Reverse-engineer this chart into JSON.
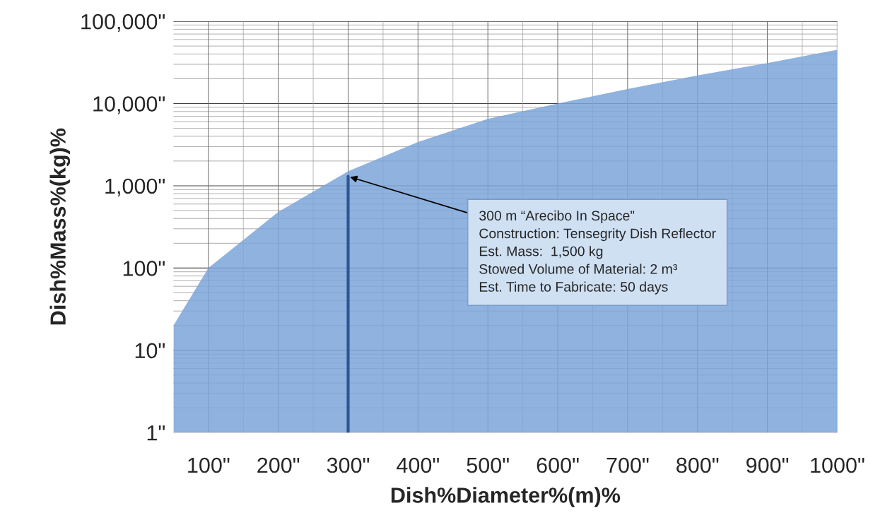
{
  "chart_data": {
    "type": "area",
    "xlabel": "Dish%Diameter%(m)%",
    "ylabel": "Dish%Mass%(kg)%",
    "x": [
      50,
      100,
      200,
      300,
      400,
      500,
      600,
      700,
      800,
      900,
      1000
    ],
    "series": [
      {
        "color": "#7ba5d8",
        "values": [
          20,
          100,
          480,
          1500,
          3400,
          6500,
          10000,
          15000,
          22000,
          31000,
          45000
        ]
      },
      {
        "type": "line",
        "color": "#2b5796",
        "x": [
          300,
          300
        ],
        "values": [
          1,
          1300
        ]
      }
    ],
    "log": "y",
    "xlim": [
      50,
      1000
    ],
    "ylim": [
      1,
      100000
    ],
    "xticks": [
      {
        "value": 100,
        "label": "100\""
      },
      {
        "value": 200,
        "label": "200\""
      },
      {
        "value": 300,
        "label": "300\""
      },
      {
        "value": 400,
        "label": "400\""
      },
      {
        "value": 500,
        "label": "500\""
      },
      {
        "value": 600,
        "label": "600\""
      },
      {
        "value": 700,
        "label": "700\""
      },
      {
        "value": 800,
        "label": "800\""
      },
      {
        "value": 900,
        "label": "900\""
      },
      {
        "value": 1000,
        "label": "1000\""
      }
    ],
    "yticks": [
      {
        "value": 1,
        "label": "1\""
      },
      {
        "value": 10,
        "label": "10\""
      },
      {
        "value": 100,
        "label": "100\""
      },
      {
        "value": 1000,
        "label": "1,000\""
      },
      {
        "value": 10000,
        "label": "10,000\""
      },
      {
        "value": 100000,
        "label": "100,000\""
      }
    ],
    "grid": true,
    "annotations": [
      {
        "text": "300 m “Arecibo In Space”\nConstruction: Tensegrity Dish Reflector\nEst. Mass:  1,500 kg\nStowed Volume of Material: 2 m³\nEst. Time to Fabricate: 50 days",
        "x": 300,
        "y": 1300
      }
    ]
  }
}
